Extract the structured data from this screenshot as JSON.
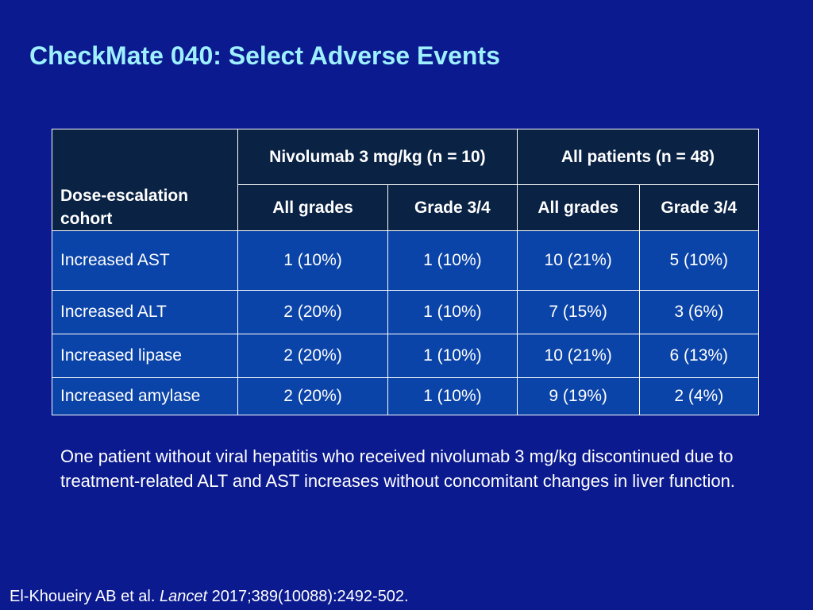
{
  "slide": {
    "title": "CheckMate 040: Select Adverse Events"
  },
  "table": {
    "row_header": "Dose-escalation cohort",
    "groups": [
      "Nivolumab 3 mg/kg (n = 10)",
      "All patients (n = 48)"
    ],
    "subheaders": [
      "All grades",
      "Grade 3/4",
      "All grades",
      "Grade 3/4"
    ],
    "rows": [
      {
        "label": "Increased AST",
        "values": [
          "1 (10%)",
          "1 (10%)",
          "10 (21%)",
          "5 (10%)"
        ]
      },
      {
        "label": "Increased ALT",
        "values": [
          "2 (20%)",
          "1 (10%)",
          "7 (15%)",
          "3 (6%)"
        ]
      },
      {
        "label": "Increased lipase",
        "values": [
          "2 (20%)",
          "1 (10%)",
          "10 (21%)",
          "6 (13%)"
        ]
      },
      {
        "label": "Increased amylase",
        "values": [
          "2 (20%)",
          "1 (10%)",
          "9 (19%)",
          "2 (4%)"
        ]
      }
    ]
  },
  "note": "One patient without viral hepatitis who received nivolumab 3 mg/kg discontinued due to treatment-related ALT and AST increases without concomitant changes in liver function.",
  "citation": {
    "authors": "El-Khoueiry AB et al.",
    "journal": "Lancet",
    "details": "2017;389(10088):2492-502."
  },
  "colors": {
    "background": "#0b1a8f",
    "title": "#9ef0ff",
    "header_fill": "#0a2244",
    "body_fill": "#0b44a8"
  }
}
